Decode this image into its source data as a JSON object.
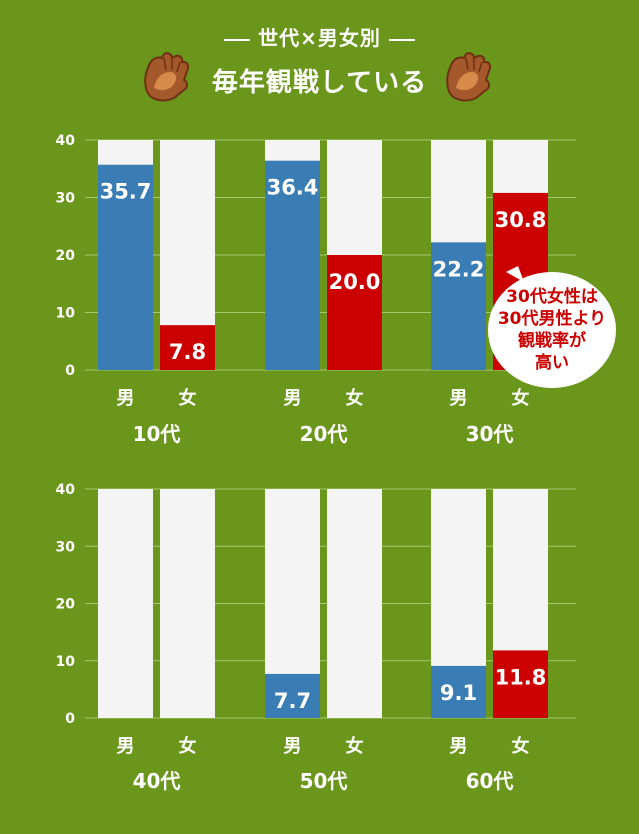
{
  "header": {
    "subtitle": "世代×男女別",
    "title": "毎年観戦している"
  },
  "icons": [
    "baseball-glove-icon",
    "baseball-glove-icon"
  ],
  "colors": {
    "background": "#6b961c",
    "male": "#3a7db5",
    "female": "#cc0000",
    "bar_track": "#f4f4f4",
    "grid": "#aac770"
  },
  "callout": {
    "lines": [
      "30代女性は",
      "30代男性より",
      "観戦率が",
      "高い"
    ]
  },
  "chart_data": [
    {
      "type": "bar",
      "ylim": [
        0,
        40
      ],
      "yticks": [
        0,
        10,
        20,
        30,
        40
      ],
      "groups": [
        {
          "label": "10代",
          "categories": [
            "男",
            "女"
          ],
          "values": [
            35.7,
            7.8
          ],
          "value_labels": [
            "35.7",
            "7.8"
          ]
        },
        {
          "label": "20代",
          "categories": [
            "男",
            "女"
          ],
          "values": [
            36.4,
            20.0
          ],
          "value_labels": [
            "36.4",
            "20.0"
          ]
        },
        {
          "label": "30代",
          "categories": [
            "男",
            "女"
          ],
          "values": [
            22.2,
            30.8
          ],
          "value_labels": [
            "22.2",
            "30.8"
          ]
        }
      ]
    },
    {
      "type": "bar",
      "ylim": [
        0,
        40
      ],
      "yticks": [
        0,
        10,
        20,
        30,
        40
      ],
      "groups": [
        {
          "label": "40代",
          "categories": [
            "男",
            "女"
          ],
          "values": [
            0,
            0
          ],
          "value_labels": [
            "",
            ""
          ]
        },
        {
          "label": "50代",
          "categories": [
            "男",
            "女"
          ],
          "values": [
            7.7,
            0
          ],
          "value_labels": [
            "7.7",
            ""
          ]
        },
        {
          "label": "60代",
          "categories": [
            "男",
            "女"
          ],
          "values": [
            9.1,
            11.8
          ],
          "value_labels": [
            "9.1",
            "11.8"
          ]
        }
      ]
    }
  ]
}
